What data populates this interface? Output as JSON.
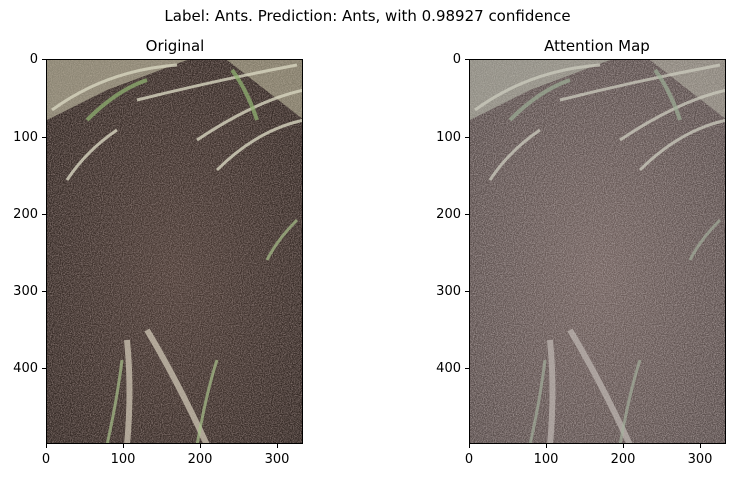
{
  "figure": {
    "suptitle": "Label: Ants. Prediction: Ants, with 0.98927 confidence"
  },
  "panels": [
    {
      "title": "Original",
      "yticks": [
        "0",
        "100",
        "200",
        "300",
        "400"
      ],
      "xticks": [
        "0",
        "100",
        "200",
        "300"
      ]
    },
    {
      "title": "Attention Map",
      "yticks": [
        "0",
        "100",
        "200",
        "300",
        "400"
      ],
      "xticks": [
        "0",
        "100",
        "200",
        "300"
      ]
    }
  ],
  "colors": {
    "soil": "#4a3a34",
    "grass": "#c8c4a8",
    "green": "#7a9a5a"
  }
}
